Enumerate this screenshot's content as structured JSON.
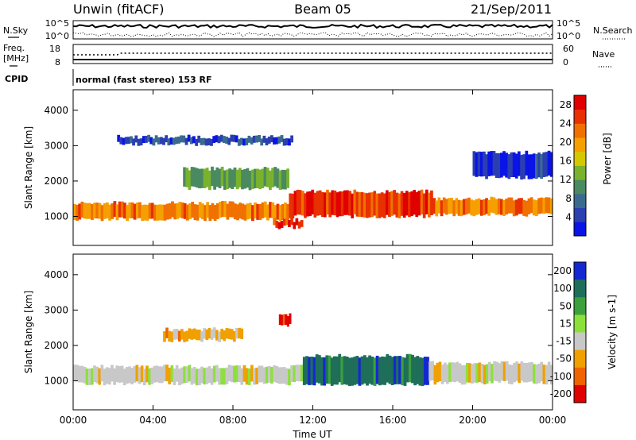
{
  "header": {
    "station": "Unwin (fitACF)",
    "beam": "Beam 05",
    "date": "21/Sep/2011"
  },
  "status_panels": {
    "nsky_label": "N.Sky",
    "nsky_ticks": [
      "10^5",
      "10^0"
    ],
    "nsearch_label": "N.Search",
    "nsearch_ticks": [
      "10^5",
      "10^0"
    ],
    "freq_label": "Freq.",
    "freq_unit": "[MHz]",
    "freq_ticks": [
      "18",
      "8"
    ],
    "nave_label": "Nave",
    "nave_ticks": [
      "60",
      "0"
    ],
    "cpid_label": "CPID",
    "cpid_value": "normal (fast stereo) 153 RF"
  },
  "chart_data": [
    {
      "type": "heatmap",
      "name": "power",
      "ylabel": "Slant Range [km]",
      "xlabel": "",
      "x_ticks": [
        "00:00",
        "04:00",
        "08:00",
        "12:00",
        "16:00",
        "20:00",
        "00:00"
      ],
      "x_range_hours": [
        0,
        24
      ],
      "y_ticks": [
        "1000",
        "2000",
        "3000",
        "4000"
      ],
      "y_range_km": [
        180,
        4580
      ],
      "colorbar": {
        "label": "Power [dB]",
        "ticks": [
          "4",
          "8",
          "12",
          "16",
          "20",
          "24",
          "28"
        ],
        "range": [
          0,
          30
        ],
        "colors": [
          "#0a14e6",
          "#2a3fb0",
          "#3b6a8e",
          "#4a8a60",
          "#7ab22e",
          "#d4c800",
          "#f5a000",
          "#f07000",
          "#e83000",
          "#e00000"
        ]
      },
      "echo_regions_hours_km": [
        {
          "t0": 0.0,
          "t1": 10.8,
          "r0": 930,
          "r1": 1380,
          "level": 22
        },
        {
          "t0": 10.8,
          "t1": 18.0,
          "r0": 1000,
          "r1": 1700,
          "level": 26
        },
        {
          "t0": 18.0,
          "t1": 24.0,
          "r0": 1050,
          "r1": 1500,
          "level": 22
        },
        {
          "t0": 5.5,
          "t1": 10.8,
          "r0": 1800,
          "r1": 2350,
          "level": 12
        },
        {
          "t0": 2.2,
          "t1": 11.0,
          "r0": 3050,
          "r1": 3250,
          "level": 5
        },
        {
          "t0": 10.0,
          "t1": 11.5,
          "r0": 700,
          "r1": 900,
          "level": 26
        },
        {
          "t0": 20.0,
          "t1": 24.0,
          "r0": 2100,
          "r1": 2800,
          "level": 4
        }
      ]
    },
    {
      "type": "heatmap",
      "name": "velocity",
      "ylabel": "Slant Range [km]",
      "xlabel": "Time UT",
      "x_ticks": [
        "00:00",
        "04:00",
        "08:00",
        "12:00",
        "16:00",
        "20:00",
        "00:00"
      ],
      "x_range_hours": [
        0,
        24
      ],
      "y_ticks": [
        "1000",
        "2000",
        "3000",
        "4000"
      ],
      "y_range_km": [
        180,
        4580
      ],
      "colorbar": {
        "label": "Velocity [m s-1]",
        "ticks": [
          "200",
          "100",
          "50",
          "15",
          "-15",
          "-50",
          "-100",
          "-200"
        ],
        "colors": [
          "#1428d2",
          "#1e6e5a",
          "#3ca03c",
          "#8ce03c",
          "#c8c8c8",
          "#f0a000",
          "#f06400",
          "#e00000"
        ]
      },
      "echo_regions_hours_km": [
        {
          "t0": 0.0,
          "t1": 11.5,
          "r0": 930,
          "r1": 1400,
          "velocity": 0
        },
        {
          "t0": 11.5,
          "t1": 17.8,
          "r0": 900,
          "r1": 1700,
          "velocity": 120
        },
        {
          "t0": 17.8,
          "t1": 24.0,
          "r0": 950,
          "r1": 1500,
          "velocity": 0
        },
        {
          "t0": 10.3,
          "t1": 10.9,
          "r0": 2550,
          "r1": 2850,
          "velocity": -200
        },
        {
          "t0": 4.5,
          "t1": 8.5,
          "r0": 2150,
          "r1": 2450,
          "velocity": -50
        }
      ]
    }
  ]
}
